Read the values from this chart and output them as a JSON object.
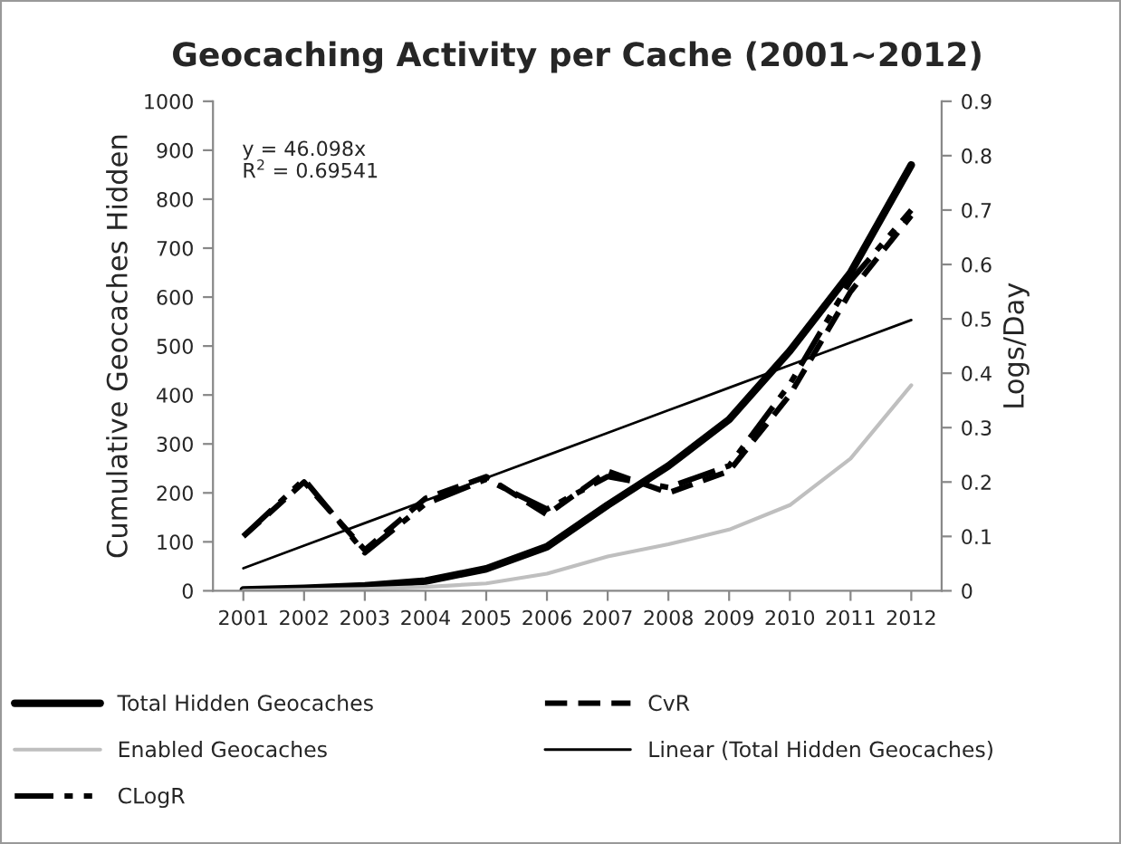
{
  "chart_data": {
    "type": "line",
    "title": "Geocaching Activity per Cache (2001~2012)",
    "ylabel": "Cumulative Geocaches Hidden",
    "y2label": "Logs/Day",
    "categories": [
      "2001",
      "2002",
      "2003",
      "2004",
      "2005",
      "2006",
      "2007",
      "2008",
      "2009",
      "2010",
      "2011",
      "2012"
    ],
    "series": [
      {
        "name": "Total Hidden Geocaches",
        "color": "#000000",
        "line_style": "solid",
        "values": [
          2,
          5,
          10,
          20,
          45,
          90,
          175,
          255,
          350,
          490,
          650,
          870
        ]
      },
      {
        "name": "Enabled Geocaches",
        "color": "#bfbfbf",
        "line_style": "solid",
        "values": [
          0,
          2,
          4,
          8,
          15,
          35,
          70,
          95,
          125,
          175,
          270,
          420
        ]
      },
      {
        "name": "CLogR",
        "color": "#000000",
        "line_style": "dashdot",
        "axis": "y2",
        "values": [
          0.1,
          0.205,
          0.07,
          0.16,
          0.205,
          0.15,
          0.21,
          0.19,
          0.23,
          0.38,
          0.57,
          0.7
        ]
      },
      {
        "name": "CvR",
        "color": "#000000",
        "line_style": "dashed",
        "axis": "y2",
        "values": [
          0.1,
          0.2,
          0.075,
          0.17,
          0.21,
          0.14,
          0.22,
          0.18,
          0.22,
          0.36,
          0.55,
          0.69
        ]
      },
      {
        "name": "Linear (Total Hidden Geocaches)",
        "color": "#000000",
        "line_style": "solid",
        "values": [
          46.1,
          92.2,
          138.3,
          184.4,
          230.5,
          276.6,
          322.7,
          368.8,
          414.9,
          461.0,
          507.1,
          553.2
        ]
      }
    ],
    "ylim": [
      0,
      1000
    ],
    "yticks": [
      0,
      100,
      200,
      300,
      400,
      500,
      600,
      700,
      800,
      900,
      1000
    ],
    "y2lim": [
      0,
      0.9
    ],
    "y2ticks": [
      0,
      0.1,
      0.2,
      0.3,
      0.4,
      0.5,
      0.6,
      0.7,
      0.8,
      0.9
    ],
    "annotations": [
      "y = 46.098x",
      "R$^{2}$ = 0.69541"
    ],
    "grid": false,
    "legend": "bottom",
    "marker": "none"
  }
}
